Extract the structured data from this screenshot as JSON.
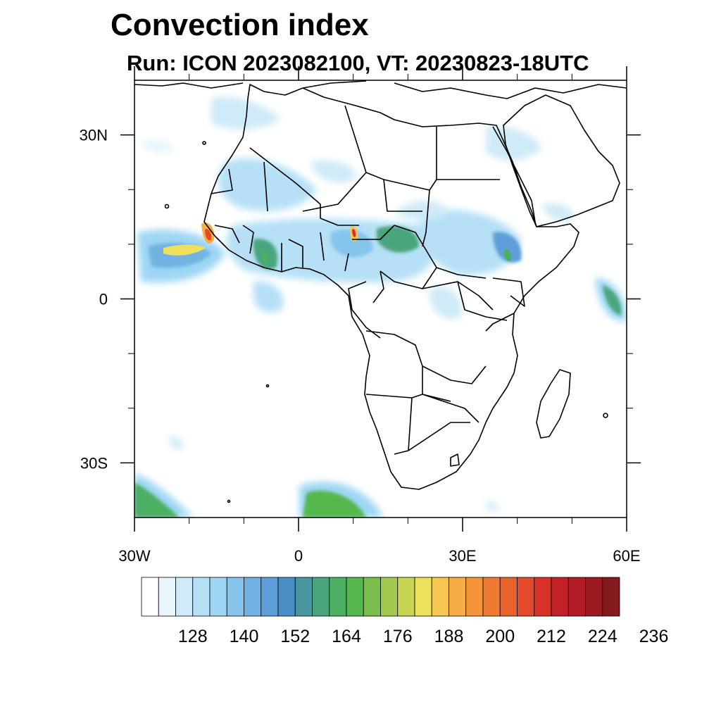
{
  "header": {
    "title": "Convection index",
    "subtitle": "Run: ICON 2023082100,  VT: 20230823-18UTC"
  },
  "map": {
    "projection": "cylindrical-equidistant",
    "lon_range": [
      -30,
      60
    ],
    "lat_range": [
      -40,
      40
    ],
    "x_ticks": [
      {
        "value": -30,
        "label": "30W"
      },
      {
        "value": 0,
        "label": "0"
      },
      {
        "value": 30,
        "label": "30E"
      },
      {
        "value": 60,
        "label": "60E"
      }
    ],
    "y_ticks": [
      {
        "value": 30,
        "label": "30N"
      },
      {
        "value": 0,
        "label": "0"
      },
      {
        "value": -30,
        "label": "30S"
      }
    ],
    "minor_x_ticks": [
      -20,
      -10,
      10,
      20,
      40,
      50
    ],
    "minor_y_ticks": [
      20,
      10,
      -10,
      -20
    ],
    "coastline_color": "#000000",
    "convection_regions": [
      {
        "name": "tropical-atlantic-west-africa",
        "lon": -22,
        "lat": 8,
        "max_value": 208
      },
      {
        "name": "senegal-guinea-coast",
        "lon": -16,
        "lat": 12,
        "max_value": 224
      },
      {
        "name": "nigeria-cameroon",
        "lon": 10,
        "lat": 10,
        "max_value": 216
      },
      {
        "name": "cameroon-cluster",
        "lon": 18,
        "lat": 10,
        "max_value": 176
      },
      {
        "name": "ethiopian-highlands",
        "lon": 38,
        "lat": 8,
        "max_value": 176
      },
      {
        "name": "indian-ocean-east",
        "lon": 58,
        "lat": -2,
        "max_value": 172
      },
      {
        "name": "south-atlantic-southwest",
        "lon": -27,
        "lat": -37,
        "max_value": 172
      },
      {
        "name": "south-atlantic-central",
        "lon": 7,
        "lat": -37,
        "max_value": 176
      }
    ]
  },
  "colorbar": {
    "colors": [
      "#ffffff",
      "#e8f5fc",
      "#cfeaf8",
      "#b5e0f6",
      "#9dd6f4",
      "#86c5ec",
      "#72b3e4",
      "#5e9ed8",
      "#4a8ec4",
      "#4996a0",
      "#4aa57c",
      "#4cb063",
      "#55b84e",
      "#7abe4d",
      "#a4c950",
      "#c8d552",
      "#ede05a",
      "#f6c650",
      "#f7ad45",
      "#f59439",
      "#ef7a32",
      "#e9622c",
      "#e24a29",
      "#d83228",
      "#c42127",
      "#b01b25",
      "#9b1a22",
      "#851a1e"
    ],
    "labels": [
      "128",
      "140",
      "152",
      "164",
      "176",
      "188",
      "200",
      "212",
      "224",
      "236"
    ]
  }
}
